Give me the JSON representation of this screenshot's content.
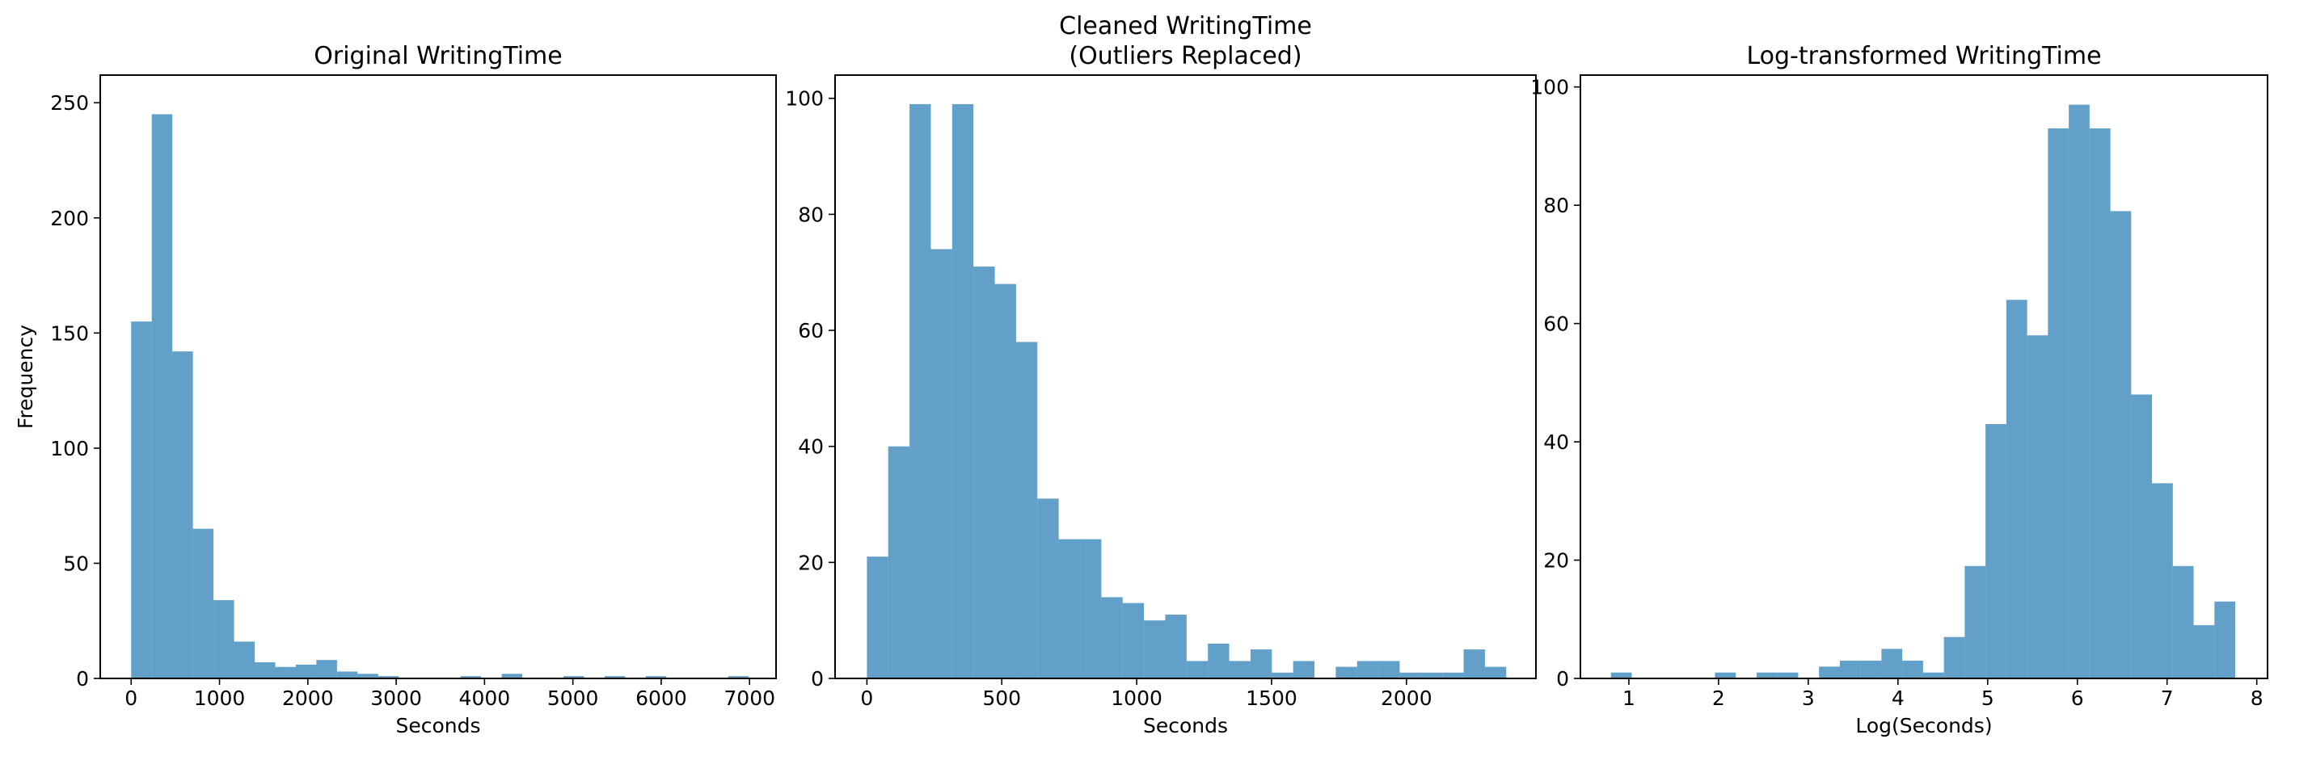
{
  "chart_data": [
    {
      "type": "histogram",
      "title": "Original WritingTime",
      "xlabel": "Seconds",
      "ylabel": "Frequency",
      "xlim": [
        -350,
        7300
      ],
      "ylim": [
        0,
        262
      ],
      "xticks": [
        0,
        1000,
        2000,
        3000,
        4000,
        5000,
        6000,
        7000
      ],
      "yticks": [
        0,
        50,
        100,
        150,
        200,
        250
      ],
      "bin_start": 0,
      "bin_width": 233,
      "counts": [
        155,
        245,
        142,
        65,
        34,
        16,
        7,
        5,
        6,
        8,
        3,
        2,
        1,
        0,
        0,
        0,
        1,
        0,
        2,
        0,
        0,
        1,
        0,
        1,
        0,
        1,
        0,
        0,
        0,
        1
      ],
      "grid": false,
      "color": "#1f77b4"
    },
    {
      "type": "histogram",
      "title": "Cleaned WritingTime\n(Outliers Replaced)",
      "xlabel": "Seconds",
      "ylabel": "",
      "xlim": [
        -118,
        2480
      ],
      "ylim": [
        0,
        104
      ],
      "xticks": [
        0,
        500,
        1000,
        1500,
        2000
      ],
      "yticks": [
        0,
        20,
        40,
        60,
        80,
        100
      ],
      "bin_start": 0,
      "bin_width": 79,
      "counts": [
        21,
        40,
        99,
        74,
        99,
        71,
        68,
        58,
        31,
        24,
        24,
        14,
        13,
        10,
        11,
        3,
        6,
        3,
        5,
        1,
        3,
        0,
        2,
        3,
        3,
        1,
        1,
        1,
        5,
        2
      ],
      "grid": false,
      "color": "#1f77b4"
    },
    {
      "type": "histogram",
      "title": "Log-transformed WritingTime",
      "xlabel": "Log(Seconds)",
      "ylabel": "",
      "xlim": [
        0.46,
        8.12
      ],
      "ylim": [
        0,
        102
      ],
      "xticks": [
        1,
        2,
        3,
        4,
        5,
        6,
        7,
        8
      ],
      "yticks": [
        0,
        20,
        40,
        60,
        80,
        100
      ],
      "bin_start": 0.8,
      "bin_width": 0.232,
      "counts": [
        1,
        0,
        0,
        0,
        0,
        1,
        0,
        1,
        1,
        0,
        2,
        3,
        3,
        5,
        3,
        1,
        7,
        19,
        43,
        64,
        58,
        93,
        97,
        93,
        79,
        48,
        33,
        19,
        9,
        13
      ],
      "grid": false,
      "color": "#1f77b4"
    }
  ]
}
